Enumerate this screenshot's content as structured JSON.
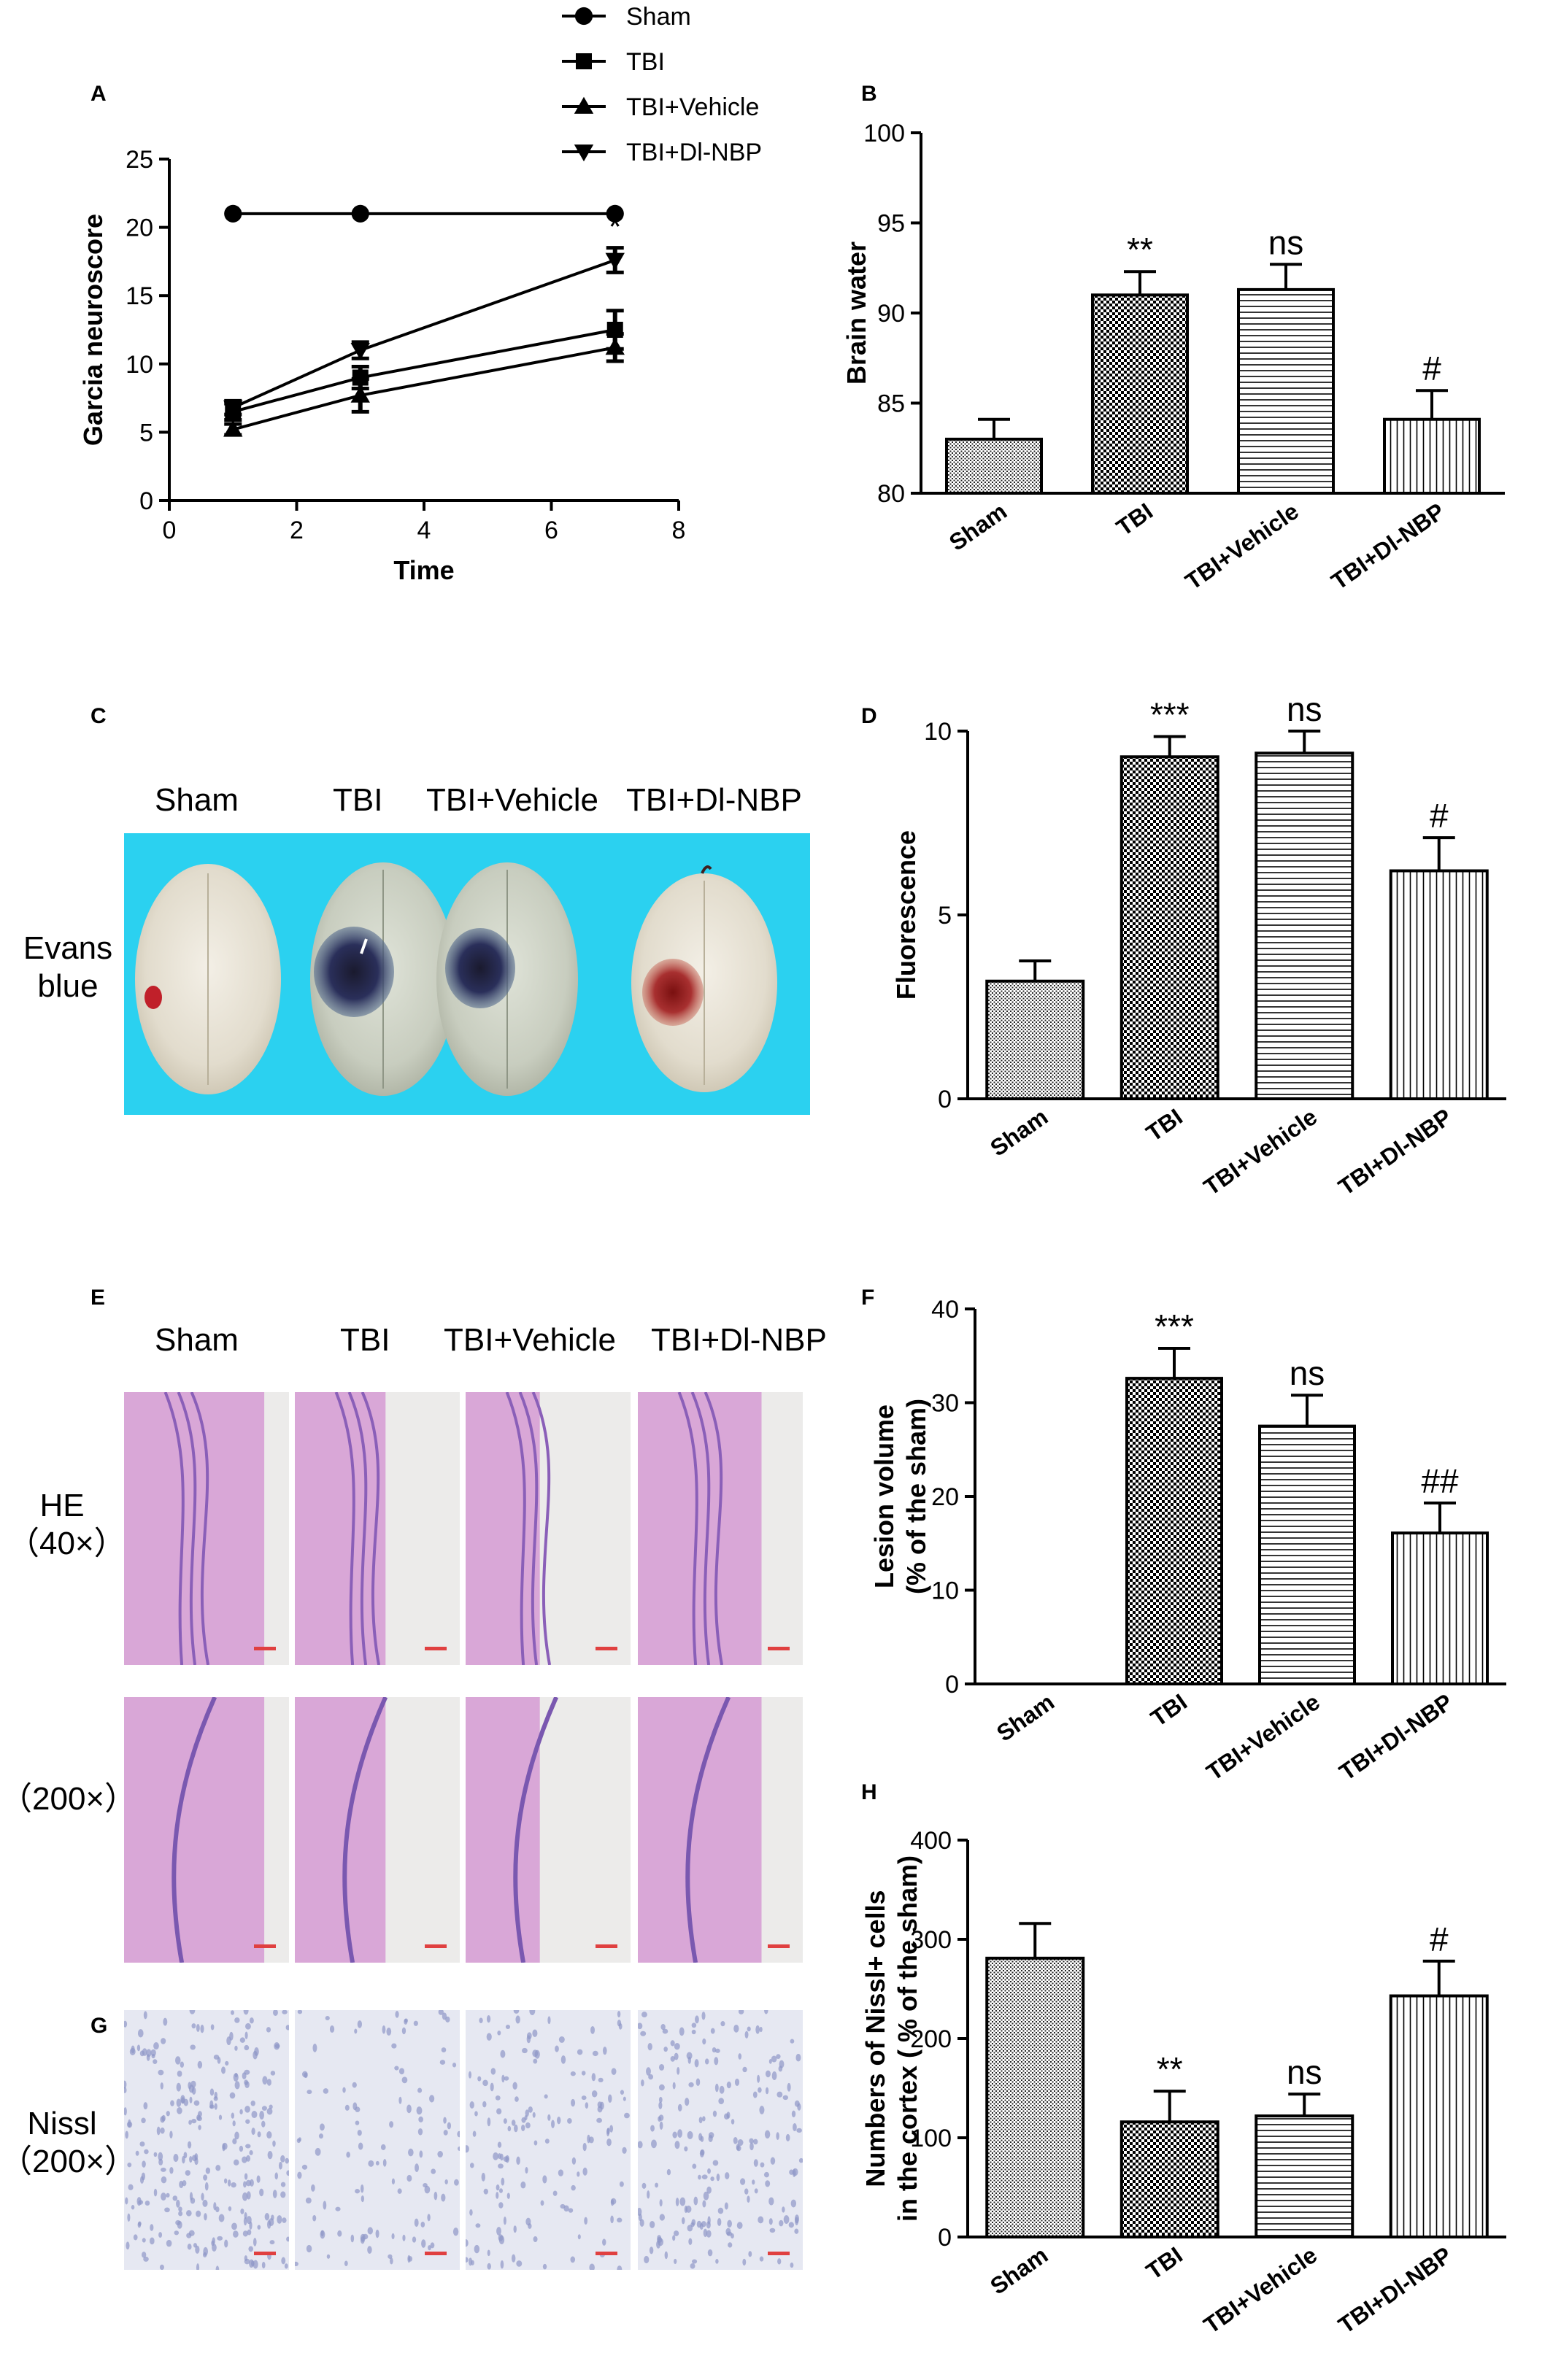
{
  "panel_labels": {
    "A": "A",
    "B": "B",
    "C": "C",
    "D": "D",
    "E": "E",
    "F": "F",
    "G": "G",
    "H": "H"
  },
  "legend": [
    {
      "label": "Sham",
      "marker": "circle"
    },
    {
      "label": "TBI",
      "marker": "square"
    },
    {
      "label": "TBI+Vehicle",
      "marker": "triangle-up"
    },
    {
      "label": "TBI+Dl-NBP",
      "marker": "triangle-down"
    }
  ],
  "group_names": [
    "Sham",
    "TBI",
    "TBI+Vehicle",
    "TBI+Dl-NBP"
  ],
  "panel_c": {
    "row_label_1": "Evans",
    "row_label_2": "blue",
    "background": "#2bd1f0"
  },
  "panel_e": {
    "he_label_1": "HE",
    "he_label_2": "（40×）",
    "he200_label": "（200×）"
  },
  "panel_g": {
    "nissl_label_1": "Nissl",
    "nissl_label_2": "（200×）"
  },
  "colors": {
    "axis": "#000000",
    "bar_edge": "#000000",
    "he_stain": "#d98ccf",
    "nissl_bg": "#e6e8f2"
  },
  "chart_data": [
    {
      "id": "A",
      "type": "line",
      "xlabel": "Time",
      "ylabel": "Garcia neuroscore",
      "xlim": [
        0,
        8
      ],
      "ylim": [
        0,
        25
      ],
      "xticks": [
        0,
        2,
        4,
        6,
        8
      ],
      "yticks": [
        0,
        5,
        10,
        15,
        20,
        25
      ],
      "series": [
        {
          "name": "Sham",
          "x": [
            1,
            3,
            7
          ],
          "y": [
            21,
            21,
            21
          ],
          "err": [
            0,
            0,
            0
          ],
          "marker": "circle"
        },
        {
          "name": "TBI",
          "x": [
            1,
            3,
            7
          ],
          "y": [
            6.5,
            9,
            12.5
          ],
          "err": [
            0.6,
            0.8,
            1.4
          ],
          "marker": "square"
        },
        {
          "name": "TBI+Vehicle",
          "x": [
            1,
            3,
            7
          ],
          "y": [
            5.2,
            7.7,
            11.2
          ],
          "err": [
            0.4,
            1.2,
            1.0
          ],
          "marker": "triangle-up"
        },
        {
          "name": "TBI+Dl-NBP",
          "x": [
            1,
            3,
            7
          ],
          "y": [
            6.8,
            11,
            17.6
          ],
          "err": [
            0.5,
            0.6,
            0.9
          ],
          "marker": "triangle-down"
        }
      ],
      "annotations": [
        {
          "x": 7,
          "y": 17.6,
          "text": "*"
        }
      ]
    },
    {
      "id": "B",
      "type": "bar",
      "ylabel": "Brain water",
      "ylim": [
        80,
        100
      ],
      "yticks": [
        80,
        85,
        90,
        95,
        100
      ],
      "categories": [
        "Sham",
        "TBI",
        "TBI+Vehicle",
        "TBI+Dl-NBP"
      ],
      "values": [
        83,
        91,
        91.3,
        84.1
      ],
      "err": [
        1.1,
        1.3,
        1.4,
        1.6
      ],
      "sig": [
        "",
        "**",
        "ns",
        "#"
      ]
    },
    {
      "id": "D",
      "type": "bar",
      "ylabel": "Fluorescence",
      "ylim": [
        0,
        10
      ],
      "yticks": [
        0,
        5,
        10
      ],
      "categories": [
        "Sham",
        "TBI",
        "TBI+Vehicle",
        "TBI+Dl-NBP"
      ],
      "values": [
        3.2,
        9.3,
        9.4,
        6.2
      ],
      "err": [
        0.55,
        0.55,
        0.6,
        0.9
      ],
      "sig": [
        "",
        "***",
        "ns",
        "#"
      ]
    },
    {
      "id": "F",
      "type": "bar",
      "ylabel": "Lesion volume",
      "ylabel2": "(% of the sham)",
      "ylim": [
        0,
        40
      ],
      "yticks": [
        0,
        10,
        20,
        30,
        40
      ],
      "categories": [
        "Sham",
        "TBI",
        "TBI+Vehicle",
        "TBI+Dl-NBP"
      ],
      "values": [
        0,
        32.6,
        27.5,
        16.1
      ],
      "err": [
        0,
        3.2,
        3.3,
        3.2
      ],
      "sig": [
        "",
        "***",
        "ns",
        "##"
      ]
    },
    {
      "id": "H",
      "type": "bar",
      "ylabel": "Numbers of Nissl+ cells",
      "ylabel2": "in the cortex ( % of the sham)",
      "ylim": [
        0,
        400
      ],
      "yticks": [
        0,
        100,
        200,
        300,
        400
      ],
      "categories": [
        "Sham",
        "TBI",
        "TBI+Vehicle",
        "TBI+Dl-NBP"
      ],
      "values": [
        281,
        116,
        122,
        243
      ],
      "err": [
        35,
        31,
        22,
        35
      ],
      "sig": [
        "",
        "**",
        "ns",
        "#"
      ]
    }
  ]
}
